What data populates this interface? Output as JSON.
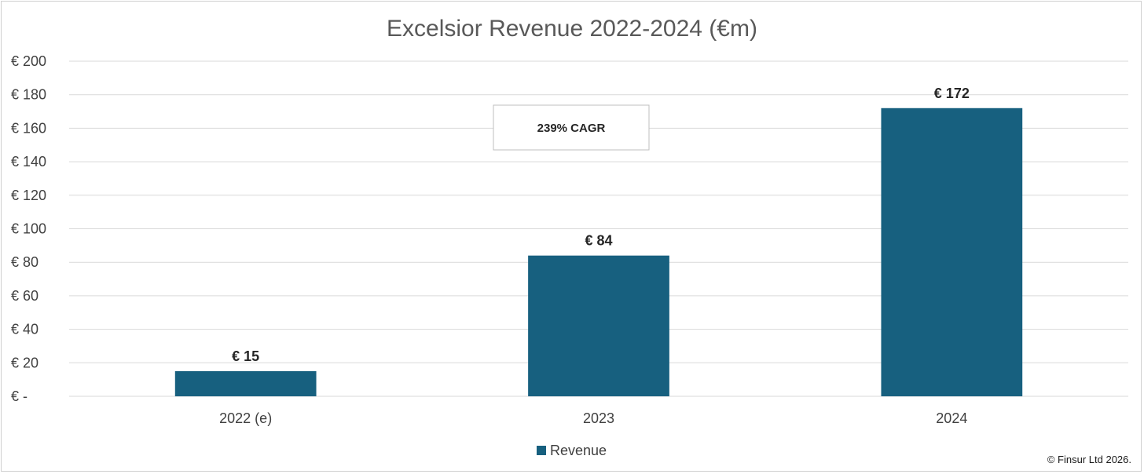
{
  "chart_data": {
    "type": "bar",
    "title": "Excelsior Revenue 2022-2024 (€m)",
    "categories": [
      "2022 (e)",
      "2023",
      "2024"
    ],
    "series": [
      {
        "name": "Revenue",
        "values": [
          15,
          84,
          172
        ],
        "color": "#17607f"
      }
    ],
    "data_labels": [
      "€ 15",
      "€ 84",
      "€ 172"
    ],
    "ylim": [
      0,
      200
    ],
    "yticks": [
      0,
      20,
      40,
      60,
      80,
      100,
      120,
      140,
      160,
      180,
      200
    ],
    "ytick_labels": [
      "€ -",
      "€ 20",
      "€ 40",
      "€ 60",
      "€ 80",
      "€ 100",
      "€ 120",
      "€ 140",
      "€ 160",
      "€ 180",
      "€ 200"
    ],
    "grid": true,
    "legend_position": "bottom",
    "annotation": "239% CAGR"
  },
  "legend": {
    "label": "Revenue"
  },
  "footer": {
    "copyright": "© Finsur Ltd 2026."
  }
}
